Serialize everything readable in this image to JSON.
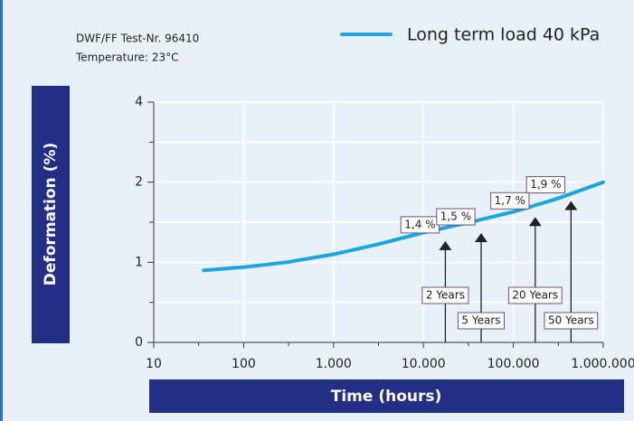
{
  "chart_data": {
    "type": "line",
    "notes": [
      "DWF/FF Test-Nr. 96410",
      "Temperature: 23°C"
    ],
    "ylabel": "Deformation (%)",
    "xlabel": "Time (hours)",
    "xscale": "log",
    "grid": true,
    "legend": "top-right",
    "xlim": [
      10,
      1000000
    ],
    "xticks": [
      10,
      100,
      {
        "value": 1000,
        "label": "1.000"
      },
      {
        "value": 10000,
        "label": "10.000"
      },
      {
        "value": 100000,
        "label": "100.000"
      },
      {
        "value": 1000000,
        "label": "1.000.000"
      }
    ],
    "ylim": [
      0,
      4
    ],
    "yticks": [
      0,
      1,
      2,
      4
    ],
    "series": [
      {
        "name": "Long term load 40 kPa",
        "color": "#1ba6df",
        "x": [
          36,
          100,
          300,
          1000,
          3000,
          10000,
          30000,
          100000,
          300000,
          1000000
        ],
        "values": [
          0.9,
          0.94,
          1.0,
          1.1,
          1.22,
          1.37,
          1.49,
          1.63,
          1.79,
          2.0
        ]
      }
    ],
    "annotations": [
      {
        "x": 17520,
        "label": "2 Years",
        "value": 1.4,
        "value_label": "1,4 %"
      },
      {
        "x": 43800,
        "label": "5 Years",
        "value": 1.5,
        "value_label": "1,5 %"
      },
      {
        "x": 175200,
        "label": "20 Years",
        "value": 1.7,
        "value_label": "1,7 %"
      },
      {
        "x": 438000,
        "label": "50 Years",
        "value": 1.9,
        "value_label": "1,9 %"
      }
    ]
  }
}
